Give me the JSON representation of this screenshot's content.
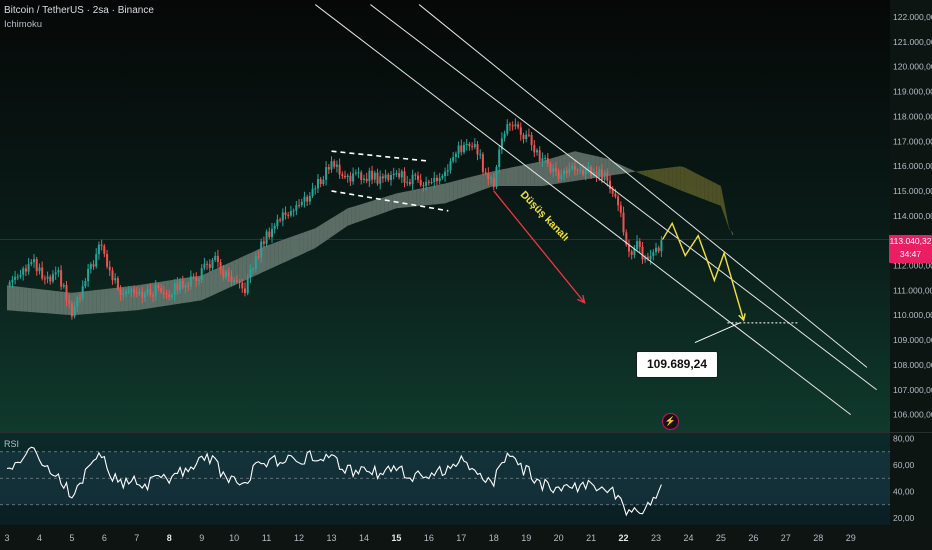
{
  "header": {
    "title": "Bitcoin / TetherUS · 2sa · Binance",
    "indicator": "Ichimoku"
  },
  "colors": {
    "up": "#26a69a",
    "down": "#ef5350",
    "cloud_bull": "#8c9e95",
    "cloud_bear": "#6b6a2c",
    "channel": "#e6e6e6",
    "projection": "#f4e23c",
    "arrow": "#f23645",
    "price_tag": "#e91e63",
    "rsi_line": "#ffffff"
  },
  "chart_data": {
    "type": "candlestick",
    "symbol": "Bitcoin / TetherUS",
    "interval": "2sa",
    "exchange": "Binance",
    "indicators": [
      "Ichimoku",
      "RSI"
    ],
    "y_axis": {
      "range": [
        105500,
        122500
      ],
      "ticks": [
        "122.000,00",
        "121.000,00",
        "120.000,00",
        "119.000,00",
        "118.000,00",
        "117.000,00",
        "116.000,00",
        "115.000,00",
        "114.000,00",
        "113.000,00",
        "112.000,00",
        "111.000,00",
        "110.000,00",
        "109.000,00",
        "108.000,00",
        "107.000,00",
        "106.000,00"
      ],
      "tick_values": [
        122000,
        121000,
        120000,
        119000,
        118000,
        117000,
        116000,
        115000,
        114000,
        113000,
        112000,
        111000,
        110000,
        109000,
        108000,
        107000,
        106000
      ]
    },
    "x_axis": {
      "day_range": [
        3,
        29
      ],
      "ticks": [
        {
          "label": "3",
          "day": 3,
          "major": false
        },
        {
          "label": "4",
          "day": 4,
          "major": false
        },
        {
          "label": "5",
          "day": 5,
          "major": false
        },
        {
          "label": "6",
          "day": 6,
          "major": false
        },
        {
          "label": "7",
          "day": 7,
          "major": false
        },
        {
          "label": "8",
          "day": 8,
          "major": true
        },
        {
          "label": "9",
          "day": 9,
          "major": false
        },
        {
          "label": "10",
          "day": 10,
          "major": false
        },
        {
          "label": "11",
          "day": 11,
          "major": false
        },
        {
          "label": "12",
          "day": 12,
          "major": false
        },
        {
          "label": "13",
          "day": 13,
          "major": false
        },
        {
          "label": "14",
          "day": 14,
          "major": false
        },
        {
          "label": "15",
          "day": 15,
          "major": true
        },
        {
          "label": "16",
          "day": 16,
          "major": false
        },
        {
          "label": "17",
          "day": 17,
          "major": false
        },
        {
          "label": "18",
          "day": 18,
          "major": false
        },
        {
          "label": "19",
          "day": 19,
          "major": false
        },
        {
          "label": "20",
          "day": 20,
          "major": false
        },
        {
          "label": "21",
          "day": 21,
          "major": false
        },
        {
          "label": "22",
          "day": 22,
          "major": true
        },
        {
          "label": "23",
          "day": 23,
          "major": false
        },
        {
          "label": "24",
          "day": 24,
          "major": false
        },
        {
          "label": "25",
          "day": 25,
          "major": false
        },
        {
          "label": "26",
          "day": 26,
          "major": false
        },
        {
          "label": "27",
          "day": 27,
          "major": false
        },
        {
          "label": "28",
          "day": 28,
          "major": false
        },
        {
          "label": "29",
          "day": 29,
          "major": false
        }
      ]
    },
    "price_path": [
      [
        3.0,
        111200
      ],
      [
        3.4,
        111800
      ],
      [
        3.8,
        112100
      ],
      [
        4.2,
        111300
      ],
      [
        4.6,
        111600
      ],
      [
        5.0,
        110000
      ],
      [
        5.3,
        110900
      ],
      [
        5.6,
        112000
      ],
      [
        5.9,
        112800
      ],
      [
        6.2,
        111600
      ],
      [
        6.5,
        111000
      ],
      [
        6.9,
        111100
      ],
      [
        7.3,
        110800
      ],
      [
        7.7,
        111100
      ],
      [
        8.0,
        110900
      ],
      [
        8.4,
        111300
      ],
      [
        8.8,
        111400
      ],
      [
        9.1,
        112000
      ],
      [
        9.4,
        112200
      ],
      [
        9.7,
        111600
      ],
      [
        10.0,
        111200
      ],
      [
        10.3,
        111000
      ],
      [
        10.6,
        112000
      ],
      [
        10.9,
        113000
      ],
      [
        11.2,
        113600
      ],
      [
        11.5,
        114000
      ],
      [
        11.8,
        114300
      ],
      [
        12.1,
        114500
      ],
      [
        12.4,
        115000
      ],
      [
        12.7,
        115500
      ],
      [
        13.0,
        116200
      ],
      [
        13.3,
        115700
      ],
      [
        13.6,
        115600
      ],
      [
        13.9,
        115500
      ],
      [
        14.2,
        115700
      ],
      [
        14.5,
        115400
      ],
      [
        14.8,
        115700
      ],
      [
        15.1,
        115700
      ],
      [
        15.4,
        115400
      ],
      [
        15.7,
        115500
      ],
      [
        16.0,
        115300
      ],
      [
        16.3,
        115500
      ],
      [
        16.6,
        115800
      ],
      [
        16.9,
        116600
      ],
      [
        17.2,
        116900
      ],
      [
        17.5,
        116600
      ],
      [
        17.8,
        115500
      ],
      [
        18.0,
        115300
      ],
      [
        18.2,
        117200
      ],
      [
        18.5,
        117700
      ],
      [
        18.8,
        117400
      ],
      [
        19.1,
        117000
      ],
      [
        19.4,
        116400
      ],
      [
        19.7,
        116000
      ],
      [
        20.0,
        115600
      ],
      [
        20.3,
        115900
      ],
      [
        20.6,
        115700
      ],
      [
        20.9,
        115800
      ],
      [
        21.2,
        115700
      ],
      [
        21.5,
        115500
      ],
      [
        21.8,
        114800
      ],
      [
        22.0,
        113500
      ],
      [
        22.2,
        112200
      ],
      [
        22.4,
        112800
      ],
      [
        22.6,
        112400
      ],
      [
        22.8,
        112300
      ],
      [
        23.0,
        112600
      ],
      [
        23.2,
        113040
      ]
    ],
    "last_price": {
      "value": 113040.32,
      "label": "113.040,32",
      "countdown": "34:47"
    },
    "ichimoku_cloud": {
      "lead_a": [
        [
          3.0,
          111200
        ],
        [
          5.0,
          110900
        ],
        [
          7.0,
          111200
        ],
        [
          9.0,
          111600
        ],
        [
          11.0,
          112800
        ],
        [
          12.5,
          113500
        ],
        [
          13.5,
          114300
        ],
        [
          15.0,
          114900
        ],
        [
          16.5,
          115300
        ],
        [
          18.0,
          115800
        ],
        [
          19.5,
          116200
        ],
        [
          20.5,
          116600
        ],
        [
          21.5,
          116300
        ],
        [
          22.5,
          115700
        ],
        [
          23.8,
          115000
        ],
        [
          25.0,
          114400
        ],
        [
          25.3,
          113300
        ]
      ],
      "lead_b": [
        [
          3.0,
          110200
        ],
        [
          5.0,
          110000
        ],
        [
          7.0,
          110200
        ],
        [
          9.0,
          110600
        ],
        [
          11.0,
          111800
        ],
        [
          12.5,
          112700
        ],
        [
          13.5,
          113600
        ],
        [
          15.0,
          114300
        ],
        [
          16.5,
          114500
        ],
        [
          18.0,
          115200
        ],
        [
          19.5,
          115200
        ],
        [
          20.5,
          115400
        ],
        [
          21.5,
          115600
        ],
        [
          22.5,
          115800
        ],
        [
          23.8,
          116000
        ],
        [
          25.0,
          115200
        ],
        [
          25.3,
          113200
        ]
      ]
    },
    "annotations": {
      "channel_lines": [
        {
          "from": [
            12.5,
            122500
          ],
          "to": [
            29.0,
            106000
          ]
        },
        {
          "from": [
            14.2,
            122500
          ],
          "to": [
            29.8,
            107000
          ]
        },
        {
          "from": [
            15.7,
            122500
          ],
          "to": [
            29.5,
            107900
          ]
        }
      ],
      "consolidation_box": [
        [
          13.0,
          116600
        ],
        [
          16.0,
          116200
        ],
        [
          16.6,
          114200
        ],
        [
          13.0,
          115000
        ]
      ],
      "channel_label": "Düşüş kanalı",
      "channel_label_anchor": [
        19.5,
        113900
      ],
      "down_arrow": {
        "from": [
          18.0,
          115000
        ],
        "to": [
          20.8,
          110500
        ]
      },
      "projection_path": [
        [
          23.2,
          113040
        ],
        [
          23.5,
          113700
        ],
        [
          23.9,
          112400
        ],
        [
          24.3,
          113200
        ],
        [
          24.8,
          111400
        ],
        [
          25.1,
          112500
        ],
        [
          25.7,
          109800
        ]
      ],
      "target_level": {
        "value": 109689.24,
        "label": "109.689,24",
        "x_from": 25.2,
        "x_to": 27.4
      },
      "target_pointer": {
        "from": [
          24.2,
          108900
        ],
        "to": [
          25.6,
          109700
        ]
      }
    },
    "rsi": {
      "label": "RSI",
      "range": [
        16,
        82
      ],
      "ticks": [
        "80,00",
        "60,00",
        "40,00",
        "20,00"
      ],
      "tick_values": [
        80,
        60,
        40,
        20
      ],
      "band_upper": 70,
      "band_middle": 50,
      "band_lower": 30,
      "values": [
        [
          3.0,
          55
        ],
        [
          3.4,
          66
        ],
        [
          3.8,
          70
        ],
        [
          4.2,
          58
        ],
        [
          4.6,
          50
        ],
        [
          5.0,
          38
        ],
        [
          5.3,
          48
        ],
        [
          5.6,
          62
        ],
        [
          5.9,
          68
        ],
        [
          6.2,
          52
        ],
        [
          6.5,
          46
        ],
        [
          6.9,
          50
        ],
        [
          7.3,
          44
        ],
        [
          7.7,
          52
        ],
        [
          8.0,
          48
        ],
        [
          8.4,
          55
        ],
        [
          8.8,
          62
        ],
        [
          9.1,
          66
        ],
        [
          9.4,
          63
        ],
        [
          9.7,
          50
        ],
        [
          10.0,
          48
        ],
        [
          10.3,
          44
        ],
        [
          10.6,
          56
        ],
        [
          10.9,
          62
        ],
        [
          11.2,
          64
        ],
        [
          11.5,
          63
        ],
        [
          11.8,
          66
        ],
        [
          12.1,
          64
        ],
        [
          12.4,
          68
        ],
        [
          12.7,
          66
        ],
        [
          13.0,
          68
        ],
        [
          13.3,
          58
        ],
        [
          13.6,
          56
        ],
        [
          13.9,
          54
        ],
        [
          14.2,
          58
        ],
        [
          14.5,
          52
        ],
        [
          14.8,
          58
        ],
        [
          15.1,
          56
        ],
        [
          15.4,
          50
        ],
        [
          15.7,
          54
        ],
        [
          16.0,
          48
        ],
        [
          16.3,
          54
        ],
        [
          16.6,
          58
        ],
        [
          16.9,
          64
        ],
        [
          17.2,
          62
        ],
        [
          17.5,
          54
        ],
        [
          17.8,
          48
        ],
        [
          18.0,
          46
        ],
        [
          18.2,
          66
        ],
        [
          18.5,
          64
        ],
        [
          18.8,
          58
        ],
        [
          19.1,
          54
        ],
        [
          19.4,
          46
        ],
        [
          19.7,
          44
        ],
        [
          20.0,
          40
        ],
        [
          20.3,
          46
        ],
        [
          20.6,
          44
        ],
        [
          20.9,
          46
        ],
        [
          21.2,
          44
        ],
        [
          21.5,
          43
        ],
        [
          21.8,
          38
        ],
        [
          22.0,
          30
        ],
        [
          22.2,
          22
        ],
        [
          22.4,
          29
        ],
        [
          22.6,
          26
        ],
        [
          22.8,
          28
        ],
        [
          23.0,
          38
        ],
        [
          23.2,
          43
        ]
      ]
    }
  }
}
